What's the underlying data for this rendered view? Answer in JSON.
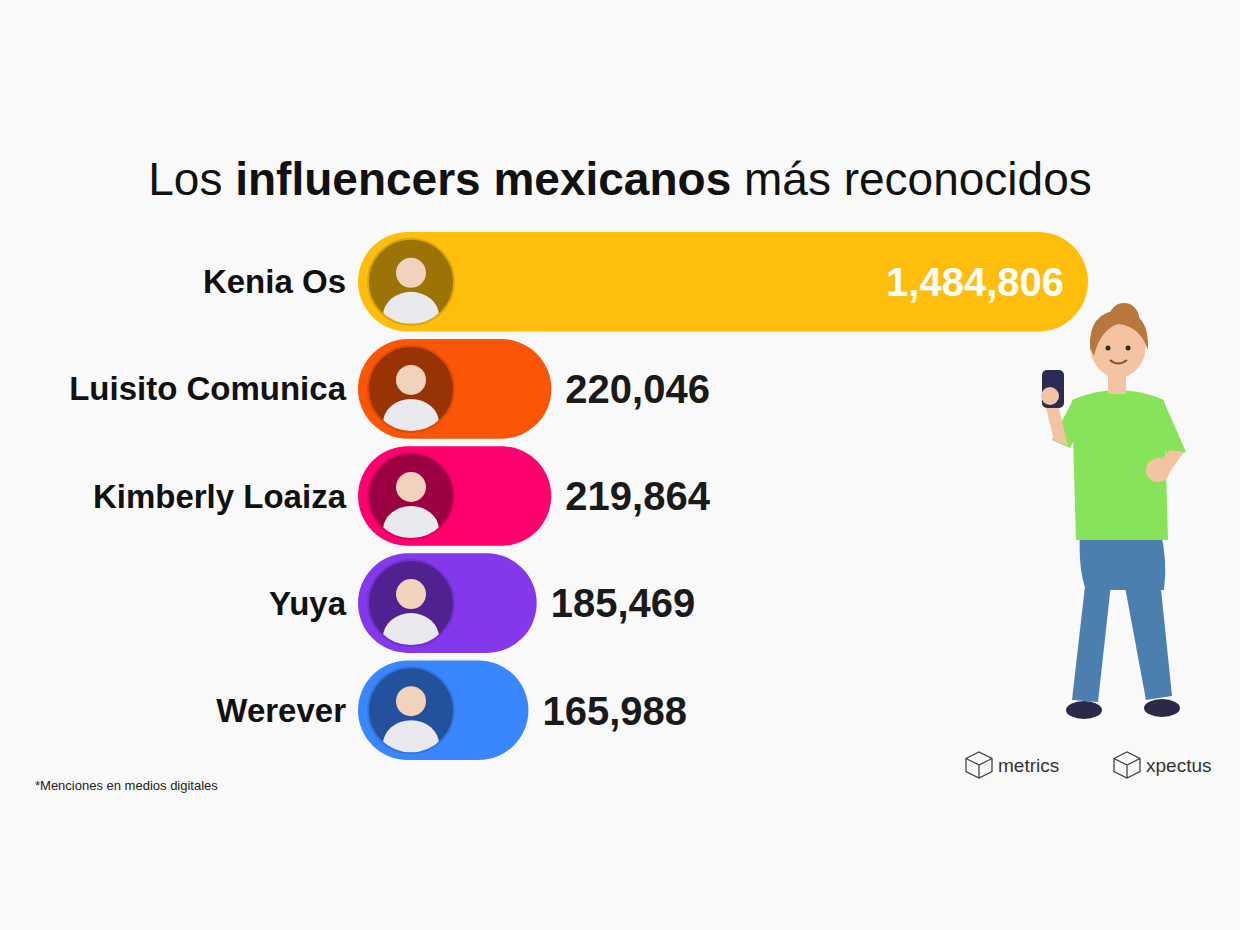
{
  "chart_data": {
    "type": "bar",
    "orientation": "horizontal",
    "title": "Los influencers mexicanos más reconocidos",
    "categories": [
      "Kenia Os",
      "Luisito Comunica",
      "Kimberly Loaiza",
      "Yuya",
      "Werever"
    ],
    "values": [
      1484806,
      220046,
      219864,
      185469,
      165988
    ],
    "value_labels": [
      "1,484,806",
      "220,046",
      "219,864",
      "185,469",
      "165,988"
    ],
    "colors": [
      "#ffbe0b",
      "#fb5607",
      "#ff006e",
      "#8338ec",
      "#3a86ff"
    ],
    "data_labels": true,
    "tick_labels": "y",
    "grid": false,
    "footnote": "*Menciones en medios digitales",
    "logos": [
      "metrics",
      "xpectus"
    ]
  }
}
